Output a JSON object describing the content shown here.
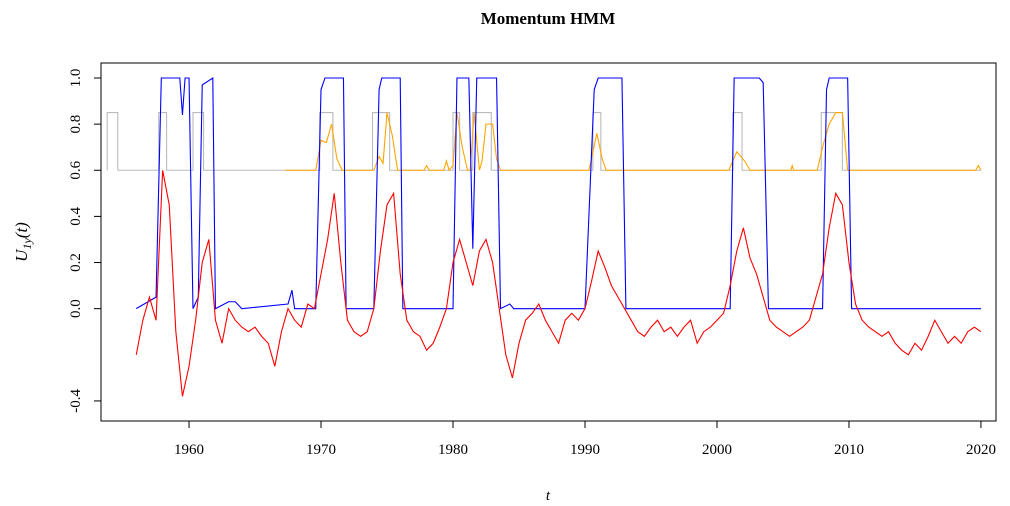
{
  "chart_data": {
    "type": "line",
    "title": "Momentum HMM",
    "xlabel": "t",
    "ylabel": {
      "main": "U",
      "sub": "1y",
      "tail": "(t)"
    },
    "xlim": [
      1953.33,
      2021.14
    ],
    "ylim": [
      -0.487,
      1.065
    ],
    "xticks": [
      1960,
      1970,
      1980,
      1990,
      2000,
      2010,
      2020
    ],
    "yticks": [
      -0.4,
      {
        "value": 0,
        "label": "0.0"
      },
      0.2,
      0.4,
      0.6,
      0.8,
      {
        "value": 1,
        "label": "1.0"
      }
    ],
    "series": [
      {
        "color": "#bbbbbb",
        "x": [
          1953.8,
          1953.8,
          1954.6,
          1954.6,
          1957.7,
          1957.7,
          1958.3,
          1958.3,
          1960.3,
          1960.3,
          1961.1,
          1961.1,
          1969.9,
          1969.9,
          1970.9,
          1970.9,
          1973.9,
          1973.9,
          1975.2,
          1975.2,
          1980.0,
          1980.0,
          1980.5,
          1980.5,
          1981.5,
          1981.5,
          1982.9,
          1982.9,
          1990.6,
          1990.6,
          1991.2,
          1991.2,
          2001.2,
          2001.2,
          2001.9,
          2001.9,
          2007.9,
          2007.9,
          2009.5,
          2009.5,
          2020
        ],
        "values": [
          0.6,
          0.85,
          0.85,
          0.6,
          0.6,
          0.85,
          0.85,
          0.6,
          0.6,
          0.85,
          0.85,
          0.6,
          0.6,
          0.85,
          0.85,
          0.6,
          0.6,
          0.85,
          0.85,
          0.6,
          0.6,
          0.85,
          0.85,
          0.6,
          0.6,
          0.85,
          0.85,
          0.6,
          0.6,
          0.85,
          0.85,
          0.6,
          0.6,
          0.85,
          0.85,
          0.6,
          0.6,
          0.85,
          0.85,
          0.6,
          0.6
        ]
      },
      {
        "color": "#ffa500",
        "x": [
          1967.3,
          1969.6,
          1970.0,
          1970.4,
          1970.8,
          1971.2,
          1971.6,
          1974.0,
          1974.4,
          1974.7,
          1975.0,
          1975.4,
          1975.8,
          1977.8,
          1978.0,
          1978.2,
          1979.3,
          1979.5,
          1979.7,
          1980.0,
          1980.3,
          1980.7,
          1981.1,
          1981.3,
          1981.6,
          1982.0,
          1982.2,
          1982.5,
          1983.0,
          1983.3,
          1983.6,
          1990.3,
          1990.9,
          1991.3,
          1991.6,
          2000.9,
          2001.5,
          2002.1,
          2002.5,
          2005.6,
          2005.7,
          2005.8,
          2007.6,
          2008.0,
          2008.5,
          2009.0,
          2009.5,
          2009.9,
          2019.6,
          2019.8,
          2020
        ],
        "values": [
          0.6,
          0.6,
          0.73,
          0.72,
          0.8,
          0.65,
          0.6,
          0.6,
          0.66,
          0.63,
          0.85,
          0.75,
          0.6,
          0.6,
          0.62,
          0.6,
          0.6,
          0.64,
          0.6,
          0.62,
          0.85,
          0.7,
          0.6,
          0.6,
          0.85,
          0.6,
          0.64,
          0.8,
          0.8,
          0.65,
          0.6,
          0.6,
          0.76,
          0.65,
          0.6,
          0.6,
          0.68,
          0.64,
          0.6,
          0.6,
          0.62,
          0.6,
          0.6,
          0.7,
          0.8,
          0.85,
          0.85,
          0.6,
          0.6,
          0.62,
          0.6
        ]
      },
      {
        "color": "#0000ff",
        "x": [
          1956.0,
          1957.5,
          1957.9,
          1959.3,
          1959.5,
          1959.7,
          1960.0,
          1960.3,
          1960.7,
          1961.0,
          1961.8,
          1962.0,
          1963.0,
          1963.5,
          1964.0,
          1967.5,
          1967.8,
          1968.0,
          1969.6,
          1970.0,
          1970.3,
          1971.7,
          1971.9,
          1974.0,
          1974.4,
          1974.6,
          1976.0,
          1976.2,
          1980.0,
          1980.3,
          1981.2,
          1981.5,
          1981.8,
          1983.3,
          1983.6,
          1984.3,
          1984.6,
          1990.0,
          1990.7,
          1991.0,
          1992.8,
          1993.1,
          2001.0,
          2001.3,
          2003.2,
          2003.5,
          2003.9,
          2008.0,
          2008.3,
          2008.5,
          2009.9,
          2010.2,
          2020.0
        ],
        "values": [
          0,
          0.05,
          1,
          1,
          0.84,
          1,
          1,
          0,
          0.05,
          0.97,
          1,
          0,
          0.03,
          0.03,
          0,
          0.02,
          0.08,
          0,
          0,
          0.95,
          1,
          1,
          0,
          0,
          0.95,
          1,
          1,
          0,
          0,
          1,
          1,
          0.26,
          1,
          1,
          0,
          0.02,
          0,
          0,
          0.95,
          1,
          1,
          0,
          0,
          1,
          1,
          0.98,
          0,
          0,
          0.95,
          1,
          1,
          0,
          0
        ]
      },
      {
        "color": "#ff0000",
        "x": [
          1956,
          1956.5,
          1957,
          1957.5,
          1958,
          1958.5,
          1959,
          1959.5,
          1960,
          1960.5,
          1961,
          1961.5,
          1962,
          1962.5,
          1963,
          1963.5,
          1964,
          1964.5,
          1965,
          1965.5,
          1966,
          1966.5,
          1967,
          1967.5,
          1968,
          1968.5,
          1969,
          1969.5,
          1970,
          1970.5,
          1971,
          1971.5,
          1972,
          1972.5,
          1973,
          1973.5,
          1974,
          1974.5,
          1975,
          1975.5,
          1976,
          1976.5,
          1977,
          1977.5,
          1978,
          1978.5,
          1979,
          1979.5,
          1980,
          1980.5,
          1981,
          1981.5,
          1982,
          1982.5,
          1983,
          1983.5,
          1984,
          1984.5,
          1985,
          1985.5,
          1986,
          1986.5,
          1987,
          1987.5,
          1988,
          1988.5,
          1989,
          1989.5,
          1990,
          1990.5,
          1991,
          1991.5,
          1992,
          1992.5,
          1993,
          1993.5,
          1994,
          1994.5,
          1995,
          1995.5,
          1996,
          1996.5,
          1997,
          1997.5,
          1998,
          1998.5,
          1999,
          1999.5,
          2000,
          2000.5,
          2001,
          2001.5,
          2002,
          2002.5,
          2003,
          2003.5,
          2004,
          2004.5,
          2005,
          2005.5,
          2006,
          2006.5,
          2007,
          2007.5,
          2008,
          2008.5,
          2009,
          2009.5,
          2010,
          2010.5,
          2011,
          2011.5,
          2012,
          2012.5,
          2013,
          2013.5,
          2014,
          2014.5,
          2015,
          2015.5,
          2016,
          2016.5,
          2017,
          2017.5,
          2018,
          2018.5,
          2019,
          2019.5,
          2020
        ],
        "values": [
          -0.2,
          -0.05,
          0.05,
          -0.05,
          0.6,
          0.45,
          -0.1,
          -0.38,
          -0.25,
          -0.05,
          0.2,
          0.3,
          -0.05,
          -0.15,
          0.0,
          -0.05,
          -0.08,
          -0.1,
          -0.08,
          -0.12,
          -0.15,
          -0.25,
          -0.1,
          0.0,
          -0.05,
          -0.08,
          0.02,
          0.0,
          0.15,
          0.3,
          0.5,
          0.2,
          -0.05,
          -0.1,
          -0.12,
          -0.1,
          0.0,
          0.25,
          0.45,
          0.5,
          0.15,
          -0.05,
          -0.1,
          -0.12,
          -0.18,
          -0.15,
          -0.08,
          0.0,
          0.2,
          0.3,
          0.2,
          0.1,
          0.25,
          0.3,
          0.2,
          0.0,
          -0.2,
          -0.3,
          -0.15,
          -0.05,
          -0.02,
          0.02,
          -0.05,
          -0.1,
          -0.15,
          -0.05,
          -0.02,
          -0.05,
          0.0,
          0.12,
          0.25,
          0.18,
          0.1,
          0.05,
          0.0,
          -0.05,
          -0.1,
          -0.12,
          -0.08,
          -0.05,
          -0.1,
          -0.08,
          -0.12,
          -0.08,
          -0.05,
          -0.15,
          -0.1,
          -0.08,
          -0.05,
          -0.02,
          0.1,
          0.25,
          0.35,
          0.22,
          0.15,
          0.05,
          -0.05,
          -0.08,
          -0.1,
          -0.12,
          -0.1,
          -0.08,
          -0.05,
          0.05,
          0.15,
          0.35,
          0.5,
          0.45,
          0.2,
          0.02,
          -0.05,
          -0.08,
          -0.1,
          -0.12,
          -0.1,
          -0.15,
          -0.18,
          -0.2,
          -0.15,
          -0.18,
          -0.12,
          -0.05,
          -0.1,
          -0.15,
          -0.12,
          -0.15,
          -0.1,
          -0.08,
          -0.1
        ]
      }
    ]
  }
}
